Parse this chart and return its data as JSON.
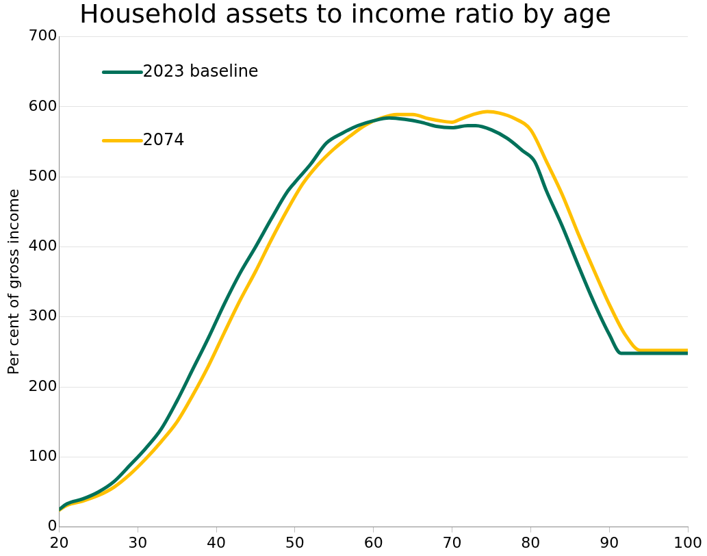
{
  "chart_data": {
    "type": "line",
    "title": "Household assets to income ratio by age",
    "ylabel": "Per cent of gross income",
    "xlim": [
      20,
      100
    ],
    "xticks": [
      20,
      30,
      40,
      50,
      60,
      70,
      80,
      90,
      100
    ],
    "ylim": [
      0,
      700
    ],
    "yticks": [
      0,
      100,
      200,
      300,
      400,
      500,
      600,
      700
    ],
    "grid": "y",
    "legend": "top left",
    "marker": "none",
    "line_style": "solid",
    "series": [
      {
        "name": "2023 baseline",
        "color": "#00715a",
        "x": [
          20,
          21,
          23,
          25,
          27,
          29,
          31,
          33,
          35,
          37,
          39,
          41,
          43,
          45,
          47,
          49,
          50,
          52,
          54,
          56,
          58,
          60,
          62,
          64,
          66,
          68,
          70,
          72,
          73,
          75,
          77,
          79,
          80.5,
          82,
          84,
          86,
          88,
          90,
          91.5,
          100
        ],
        "values": [
          25,
          33,
          40,
          50,
          65,
          88,
          112,
          140,
          180,
          225,
          270,
          318,
          362,
          400,
          440,
          478,
          492,
          518,
          548,
          562,
          573,
          580,
          584,
          582,
          578,
          572,
          570,
          573,
          573,
          567,
          555,
          537,
          522,
          480,
          430,
          375,
          322,
          275,
          248,
          248
        ]
      },
      {
        "name": "2074",
        "color": "#ffc000",
        "x": [
          20,
          21,
          23,
          25,
          27,
          29,
          31,
          33,
          35,
          37,
          39,
          41,
          43,
          45,
          47,
          49,
          51,
          53,
          55,
          57,
          59,
          61,
          63,
          65,
          67,
          69,
          70,
          71,
          73,
          74.5,
          76,
          78,
          80,
          82,
          84,
          86,
          88,
          90,
          92,
          94,
          100
        ],
        "values": [
          24,
          31,
          37,
          45,
          57,
          75,
          97,
          122,
          150,
          188,
          230,
          277,
          323,
          365,
          410,
          452,
          490,
          518,
          540,
          558,
          574,
          584,
          589,
          589,
          583,
          579,
          578,
          582,
          590,
          593,
          591,
          583,
          567,
          522,
          475,
          420,
          368,
          318,
          275,
          252,
          252
        ]
      }
    ]
  }
}
